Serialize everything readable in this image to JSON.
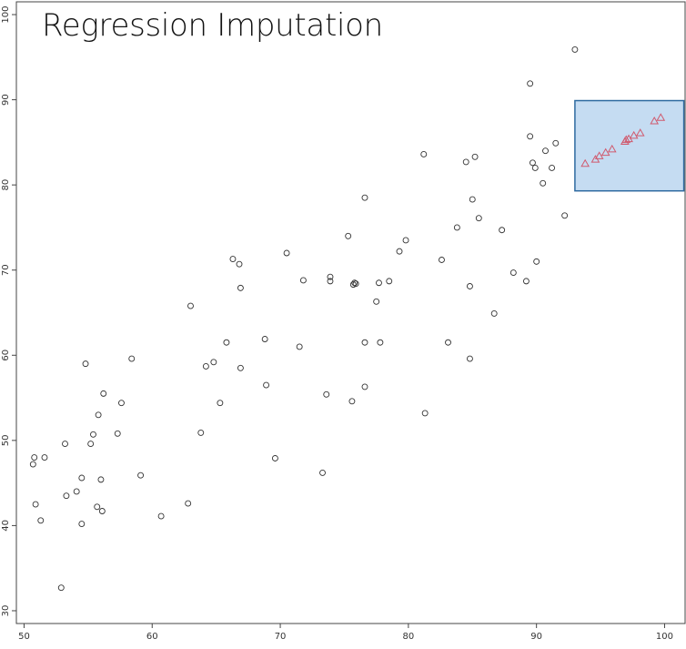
{
  "chart_data": {
    "type": "scatter",
    "title": "Regression Imputation",
    "xlabel": "",
    "ylabel": "",
    "xlim": [
      49.4,
      101.6
    ],
    "ylim": [
      28.5,
      101.5
    ],
    "xticks": [
      50,
      60,
      70,
      80,
      90,
      100
    ],
    "yticks": [
      30,
      40,
      50,
      60,
      70,
      80,
      90,
      100
    ],
    "grid": false,
    "legend": "none",
    "colors": {
      "observed": "#333333",
      "imputed": "#d05a6e",
      "highlight_fill": "#c5dcf2",
      "highlight_stroke": "#2e6aa0",
      "axis": "#444444"
    },
    "highlight_region": {
      "x": [
        93.0,
        101.5
      ],
      "y": [
        79.3,
        89.9
      ]
    },
    "series": [
      {
        "marker": "circle",
        "points": [
          [
            93.0,
            95.9
          ],
          [
            89.5,
            91.9
          ],
          [
            81.2,
            83.6
          ],
          [
            85.2,
            83.3
          ],
          [
            84.5,
            82.7
          ],
          [
            89.5,
            85.7
          ],
          [
            91.5,
            84.9
          ],
          [
            90.7,
            84.0
          ],
          [
            89.7,
            82.6
          ],
          [
            89.9,
            82.0
          ],
          [
            91.2,
            82.0
          ],
          [
            90.5,
            80.2
          ],
          [
            76.6,
            78.5
          ],
          [
            85.0,
            78.3
          ],
          [
            85.5,
            76.1
          ],
          [
            92.2,
            76.4
          ],
          [
            75.3,
            74.0
          ],
          [
            83.8,
            75.0
          ],
          [
            87.3,
            74.7
          ],
          [
            79.8,
            73.5
          ],
          [
            79.3,
            72.2
          ],
          [
            70.5,
            72.0
          ],
          [
            82.6,
            71.2
          ],
          [
            66.3,
            71.3
          ],
          [
            66.8,
            70.7
          ],
          [
            90.0,
            71.0
          ],
          [
            88.2,
            69.7
          ],
          [
            73.9,
            69.2
          ],
          [
            71.8,
            68.8
          ],
          [
            73.9,
            68.7
          ],
          [
            75.8,
            68.5
          ],
          [
            75.9,
            68.4
          ],
          [
            75.7,
            68.3
          ],
          [
            77.7,
            68.5
          ],
          [
            78.5,
            68.7
          ],
          [
            89.2,
            68.7
          ],
          [
            66.9,
            67.9
          ],
          [
            84.8,
            68.1
          ],
          [
            77.5,
            66.3
          ],
          [
            63.0,
            65.8
          ],
          [
            86.7,
            64.9
          ],
          [
            68.8,
            61.9
          ],
          [
            65.8,
            61.5
          ],
          [
            76.6,
            61.5
          ],
          [
            77.8,
            61.5
          ],
          [
            83.1,
            61.5
          ],
          [
            71.5,
            61.0
          ],
          [
            58.4,
            59.6
          ],
          [
            64.8,
            59.2
          ],
          [
            54.8,
            59.0
          ],
          [
            64.2,
            58.7
          ],
          [
            66.9,
            58.5
          ],
          [
            84.8,
            59.6
          ],
          [
            68.9,
            56.5
          ],
          [
            76.6,
            56.3
          ],
          [
            73.6,
            55.4
          ],
          [
            56.2,
            55.5
          ],
          [
            57.6,
            54.4
          ],
          [
            65.3,
            54.4
          ],
          [
            75.6,
            54.6
          ],
          [
            81.3,
            53.2
          ],
          [
            55.8,
            53.0
          ],
          [
            55.4,
            50.7
          ],
          [
            57.3,
            50.8
          ],
          [
            63.8,
            50.9
          ],
          [
            55.2,
            49.6
          ],
          [
            53.2,
            49.6
          ],
          [
            50.8,
            48.0
          ],
          [
            51.6,
            48.0
          ],
          [
            50.7,
            47.2
          ],
          [
            69.6,
            47.9
          ],
          [
            73.3,
            46.2
          ],
          [
            59.1,
            45.9
          ],
          [
            54.5,
            45.6
          ],
          [
            56.0,
            45.4
          ],
          [
            54.1,
            44.0
          ],
          [
            53.3,
            43.5
          ],
          [
            50.9,
            42.5
          ],
          [
            55.7,
            42.2
          ],
          [
            56.1,
            41.7
          ],
          [
            62.8,
            42.6
          ],
          [
            60.7,
            41.1
          ],
          [
            51.3,
            40.6
          ],
          [
            54.5,
            40.2
          ],
          [
            52.9,
            32.7
          ]
        ]
      },
      {
        "marker": "triangle",
        "points": [
          [
            93.8,
            82.5
          ],
          [
            94.6,
            83.0
          ],
          [
            94.9,
            83.4
          ],
          [
            95.4,
            83.8
          ],
          [
            95.9,
            84.2
          ],
          [
            96.9,
            85.1
          ],
          [
            97.0,
            85.3
          ],
          [
            97.2,
            85.4
          ],
          [
            97.6,
            85.8
          ],
          [
            98.1,
            86.1
          ],
          [
            99.2,
            87.5
          ],
          [
            99.7,
            87.9
          ]
        ]
      }
    ]
  }
}
